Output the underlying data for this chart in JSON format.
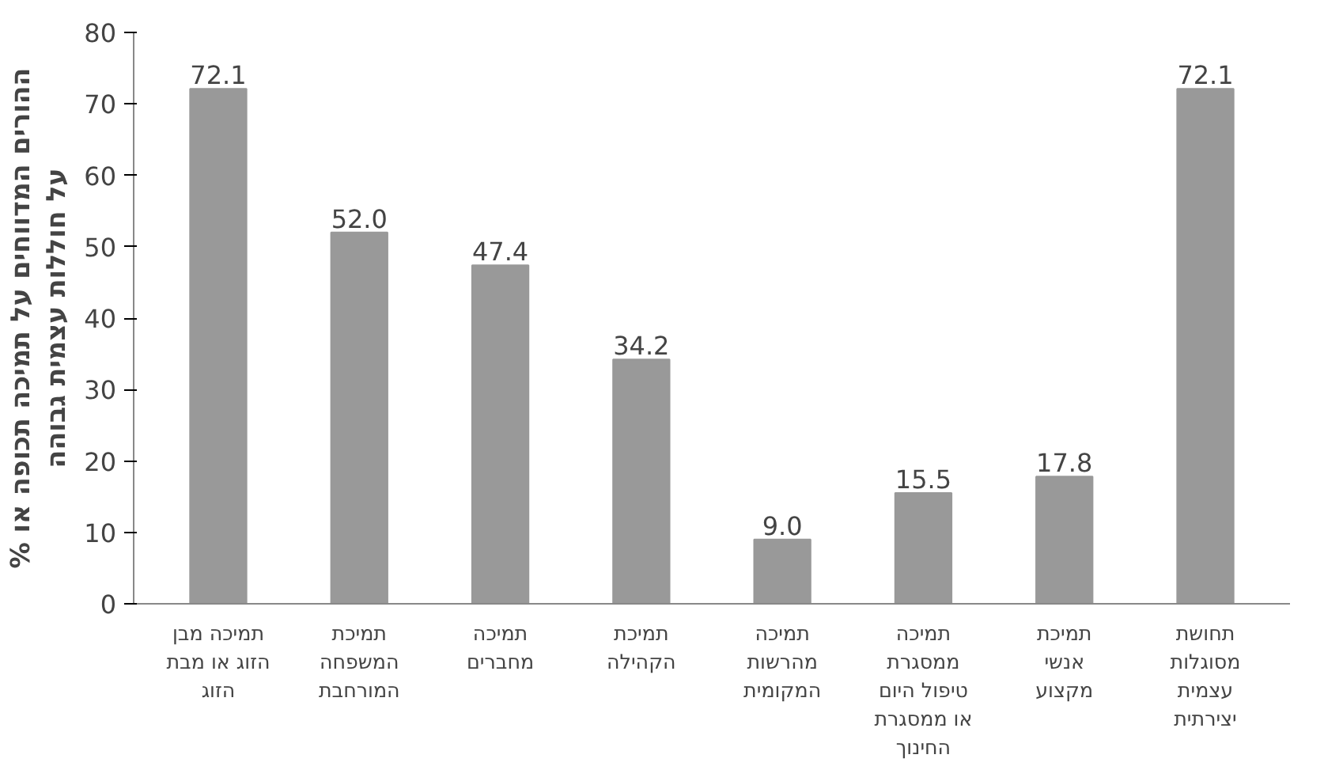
{
  "chart_data": {
    "type": "bar",
    "ylabel": "% ההורים המדווחים על תמיכה תכופה או\nעל חוללות עצמית גבוהה",
    "categories": [
      "תמיכה מבן\nהזוג או מבת\nהזוג",
      "תמיכת\nהמשפחה\nהמורחבת",
      "תמיכה\nמחברים",
      "תמיכת\nהקהילה",
      "תמיכה\nמהרשות\nהמקומית",
      "תמיכה\nממסגרת\nטיפול היום\nאו ממסגרת\nהחינוך",
      "תמיכת\nאנשי\nמקצוע",
      "תחושת\nמסוגלות\nעצמית\nיצירתית"
    ],
    "values": [
      72.1,
      52.0,
      47.4,
      34.2,
      9.0,
      15.5,
      17.8,
      72.1
    ],
    "value_labels": [
      "72.1",
      "52.0",
      "47.4",
      "34.2",
      "9.0",
      "15.5",
      "17.8",
      "72.1"
    ],
    "color": "#999999",
    "ylim": [
      0,
      80
    ],
    "yticks": [
      0,
      10,
      20,
      30,
      40,
      50,
      60,
      70,
      80
    ],
    "grid": false
  }
}
